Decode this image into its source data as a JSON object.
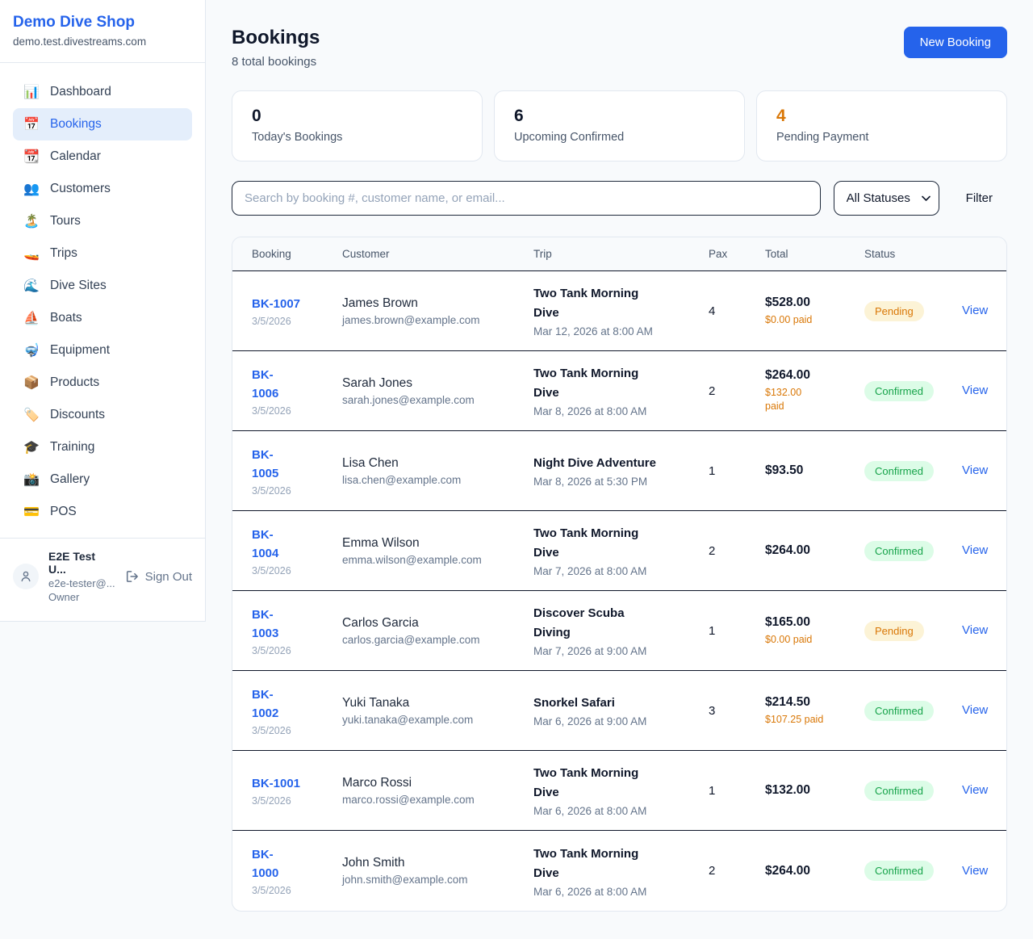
{
  "sidebar": {
    "brand": {
      "name": "Demo Dive Shop",
      "domain": "demo.test.divestreams.com"
    },
    "items": [
      {
        "label": "Dashboard",
        "icon": "bar-chart",
        "emoji": "📊",
        "active": false
      },
      {
        "label": "Bookings",
        "icon": "calendar-bookings",
        "emoji": "📅",
        "active": true
      },
      {
        "label": "Calendar",
        "icon": "tear-off-calendar",
        "emoji": "📆",
        "active": false
      },
      {
        "label": "Customers",
        "icon": "people",
        "emoji": "👥",
        "active": false
      },
      {
        "label": "Tours",
        "icon": "desert-island",
        "emoji": "🏝️",
        "active": false
      },
      {
        "label": "Trips",
        "icon": "speedboat",
        "emoji": "🚤",
        "active": false
      },
      {
        "label": "Dive Sites",
        "icon": "water-wave",
        "emoji": "🌊",
        "active": false
      },
      {
        "label": "Boats",
        "icon": "sailboat",
        "emoji": "⛵",
        "active": false
      },
      {
        "label": "Equipment",
        "icon": "diving-mask",
        "emoji": "🤿",
        "active": false
      },
      {
        "label": "Products",
        "icon": "package",
        "emoji": "📦",
        "active": false
      },
      {
        "label": "Discounts",
        "icon": "label-tag",
        "emoji": "🏷️",
        "active": false
      },
      {
        "label": "Training",
        "icon": "graduation-cap",
        "emoji": "🎓",
        "active": false
      },
      {
        "label": "Gallery",
        "icon": "camera-flash",
        "emoji": "📸",
        "active": false
      },
      {
        "label": "POS",
        "icon": "credit-card",
        "emoji": "💳",
        "active": false
      }
    ],
    "user": {
      "name": "E2E Test U...",
      "email": "e2e-tester@...",
      "role": "Owner",
      "sign_out_label": "Sign Out"
    }
  },
  "header": {
    "title": "Bookings",
    "subtitle": "8 total bookings",
    "new_booking_label": "New Booking"
  },
  "stats": [
    {
      "value": "0",
      "label": "Today's Bookings",
      "color": "#0f172a"
    },
    {
      "value": "6",
      "label": "Upcoming Confirmed",
      "color": "#0f172a"
    },
    {
      "value": "4",
      "label": "Pending Payment",
      "color": "#d97706"
    }
  ],
  "filters": {
    "search_placeholder": "Search by booking #, customer name, or email...",
    "status_selected": "All Statuses",
    "filter_label": "Filter"
  },
  "table": {
    "columns": [
      "Booking",
      "Customer",
      "Trip",
      "Pax",
      "Total",
      "Status"
    ],
    "view_label": "View",
    "rows": [
      {
        "id": "BK-1007",
        "id_wrapped": false,
        "date": "3/5/2026",
        "customer": "James Brown",
        "email": "james.brown@example.com",
        "trip": "Two Tank Morning Dive",
        "trip_datetime": "Mar 12, 2026 at 8:00 AM",
        "pax": "4",
        "total": "$528.00",
        "paid": "$0.00 paid",
        "paid_wrapped": false,
        "status": "Pending"
      },
      {
        "id": "BK-1006",
        "id_wrapped": true,
        "date": "3/5/2026",
        "customer": "Sarah Jones",
        "email": "sarah.jones@example.com",
        "trip": "Two Tank Morning Dive",
        "trip_datetime": "Mar 8, 2026 at 8:00 AM",
        "pax": "2",
        "total": "$264.00",
        "paid": "$132.00 paid",
        "paid_wrapped": true,
        "status": "Confirmed"
      },
      {
        "id": "BK-1005",
        "id_wrapped": true,
        "date": "3/5/2026",
        "customer": "Lisa Chen",
        "email": "lisa.chen@example.com",
        "trip": "Night Dive Adventure",
        "trip_datetime": "Mar 8, 2026 at 5:30 PM",
        "pax": "1",
        "total": "$93.50",
        "paid": "",
        "paid_wrapped": false,
        "status": "Confirmed"
      },
      {
        "id": "BK-1004",
        "id_wrapped": true,
        "date": "3/5/2026",
        "customer": "Emma Wilson",
        "email": "emma.wilson@example.com",
        "trip": "Two Tank Morning Dive",
        "trip_datetime": "Mar 7, 2026 at 8:00 AM",
        "pax": "2",
        "total": "$264.00",
        "paid": "",
        "paid_wrapped": false,
        "status": "Confirmed"
      },
      {
        "id": "BK-1003",
        "id_wrapped": true,
        "date": "3/5/2026",
        "customer": "Carlos Garcia",
        "email": "carlos.garcia@example.com",
        "trip": "Discover Scuba Diving",
        "trip_datetime": "Mar 7, 2026 at 9:00 AM",
        "pax": "1",
        "total": "$165.00",
        "paid": "$0.00 paid",
        "paid_wrapped": false,
        "status": "Pending"
      },
      {
        "id": "BK-1002",
        "id_wrapped": true,
        "date": "3/5/2026",
        "customer": "Yuki Tanaka",
        "email": "yuki.tanaka@example.com",
        "trip": "Snorkel Safari",
        "trip_datetime": "Mar 6, 2026 at 9:00 AM",
        "pax": "3",
        "total": "$214.50",
        "paid": "$107.25 paid",
        "paid_wrapped": false,
        "status": "Confirmed"
      },
      {
        "id": "BK-1001",
        "id_wrapped": false,
        "date": "3/5/2026",
        "customer": "Marco Rossi",
        "email": "marco.rossi@example.com",
        "trip": "Two Tank Morning Dive",
        "trip_datetime": "Mar 6, 2026 at 8:00 AM",
        "pax": "1",
        "total": "$132.00",
        "paid": "",
        "paid_wrapped": false,
        "status": "Confirmed"
      },
      {
        "id": "BK-1000",
        "id_wrapped": true,
        "date": "3/5/2026",
        "customer": "John Smith",
        "email": "john.smith@example.com",
        "trip": "Two Tank Morning Dive",
        "trip_datetime": "Mar 6, 2026 at 8:00 AM",
        "pax": "2",
        "total": "$264.00",
        "paid": "",
        "paid_wrapped": false,
        "status": "Confirmed"
      }
    ]
  },
  "colors": {
    "accent": "#2563eb",
    "pending_text": "#d97706",
    "pending_bg": "#fcf3d6",
    "confirmed_text": "#16a34a",
    "confirmed_bg": "#dcfce7"
  }
}
